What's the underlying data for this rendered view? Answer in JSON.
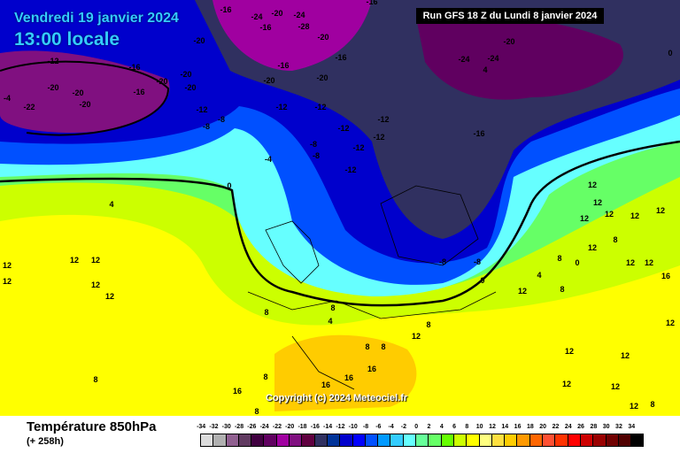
{
  "header": {
    "date": "Vendredi 19 janvier 2024",
    "local_time": "13:00 locale",
    "run": "Run GFS 18 Z du Lundi 8 janvier 2024"
  },
  "map": {
    "copyright": "Copyright (c) 2024 Meteociel.fr",
    "isotherm_labels": [
      "-12",
      "-16",
      "-20",
      "-24",
      "-28",
      "-16",
      "-20",
      "-16",
      "-24",
      "-20",
      "-20",
      "-20",
      "-24",
      "-16",
      "-20",
      "-20",
      "-24",
      "-20",
      "-16",
      "-22",
      "-20",
      "-20",
      "-16",
      "-20",
      "-16",
      "-20",
      "-4",
      "-12",
      "-8",
      "-8",
      "-12",
      "-12",
      "-12",
      "-12",
      "-8",
      "-8",
      "-12",
      "-12",
      "-12",
      "-16",
      "-4",
      "0",
      "4",
      "-8",
      "-8",
      "0",
      "4",
      "8",
      "12",
      "12",
      "12",
      "12",
      "12",
      "12",
      "8",
      "8",
      "8",
      "8",
      "4",
      "8",
      "12",
      "12",
      "12",
      "12",
      "16",
      "16",
      "16",
      "16",
      "8",
      "8",
      "12",
      "12",
      "12",
      "12",
      "8",
      "12",
      "16",
      "12",
      "8",
      "12",
      "0",
      "4",
      "12",
      "12",
      "12",
      "12",
      "8",
      "8",
      "12",
      "12",
      "0"
    ]
  },
  "footer": {
    "title": "Température 850hPa",
    "subtitle": "(+ 258h)"
  },
  "legend": {
    "labels": [
      "-34",
      "-32",
      "-30",
      "-28",
      "-26",
      "-24",
      "-22",
      "-20",
      "-18",
      "-16",
      "-14",
      "-12",
      "-10",
      "-8",
      "-6",
      "-4",
      "-2",
      "0",
      "2",
      "4",
      "6",
      "8",
      "10",
      "12",
      "14",
      "16",
      "18",
      "20",
      "22",
      "24",
      "26",
      "28",
      "30",
      "32",
      "34"
    ],
    "colors": [
      "#dcdcdc",
      "#b0b0b0",
      "#906090",
      "#603a60",
      "#400040",
      "#600060",
      "#a000a0",
      "#801080",
      "#600040",
      "#303060",
      "#003399",
      "#0000cc",
      "#0000ff",
      "#0050ff",
      "#0099ff",
      "#33ccff",
      "#66ffff",
      "#66ff99",
      "#66ff66",
      "#66ff00",
      "#ccff00",
      "#ffff00",
      "#ffff80",
      "#ffe040",
      "#ffcc00",
      "#ff9900",
      "#ff6600",
      "#ff5033",
      "#ff3300",
      "#ff0000",
      "#cc0000",
      "#990000",
      "#700000",
      "#500000",
      "#000000"
    ]
  }
}
